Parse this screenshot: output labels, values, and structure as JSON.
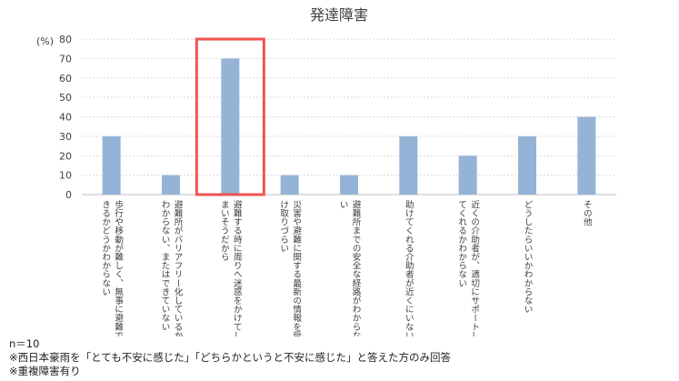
{
  "chart_data": {
    "type": "bar",
    "title": "発達障害",
    "y_unit": "(%)",
    "ylim": [
      0,
      80
    ],
    "yticks": [
      0,
      10,
      20,
      30,
      40,
      50,
      60,
      70,
      80
    ],
    "grid": true,
    "categories": [
      [
        "歩行や移動が難しく、無事に避難で",
        "きるかどうかわからない"
      ],
      [
        "避難所がバリアフリー化しているか",
        "わからない、またはできていない"
      ],
      [
        "避難する時に周りへ迷惑をかけてし",
        "まいそうだから"
      ],
      [
        "災害や避難に関する最新の情報を受",
        "け取りづらい"
      ],
      [
        "避難所までの安全な経路がわからな",
        "い"
      ],
      [
        "助けてくれる介助者が近くにいない"
      ],
      [
        "近くの介助者が、適切にサポートし",
        "てくれるかわからない"
      ],
      [
        "どうしたらいいかわからない"
      ],
      [
        "その他"
      ]
    ],
    "values": [
      30,
      10,
      70,
      10,
      10,
      30,
      20,
      30,
      40
    ],
    "highlight_index": 2,
    "bar_color": "#95b3d7",
    "highlight_color": "#ef5350"
  },
  "notes": {
    "n": "n＝10",
    "line1": "※西日本豪雨を「とても不安に感じた」「どちらかというと不安に感じた」と答えた方のみ回答",
    "line2": "※重複障害有り"
  }
}
